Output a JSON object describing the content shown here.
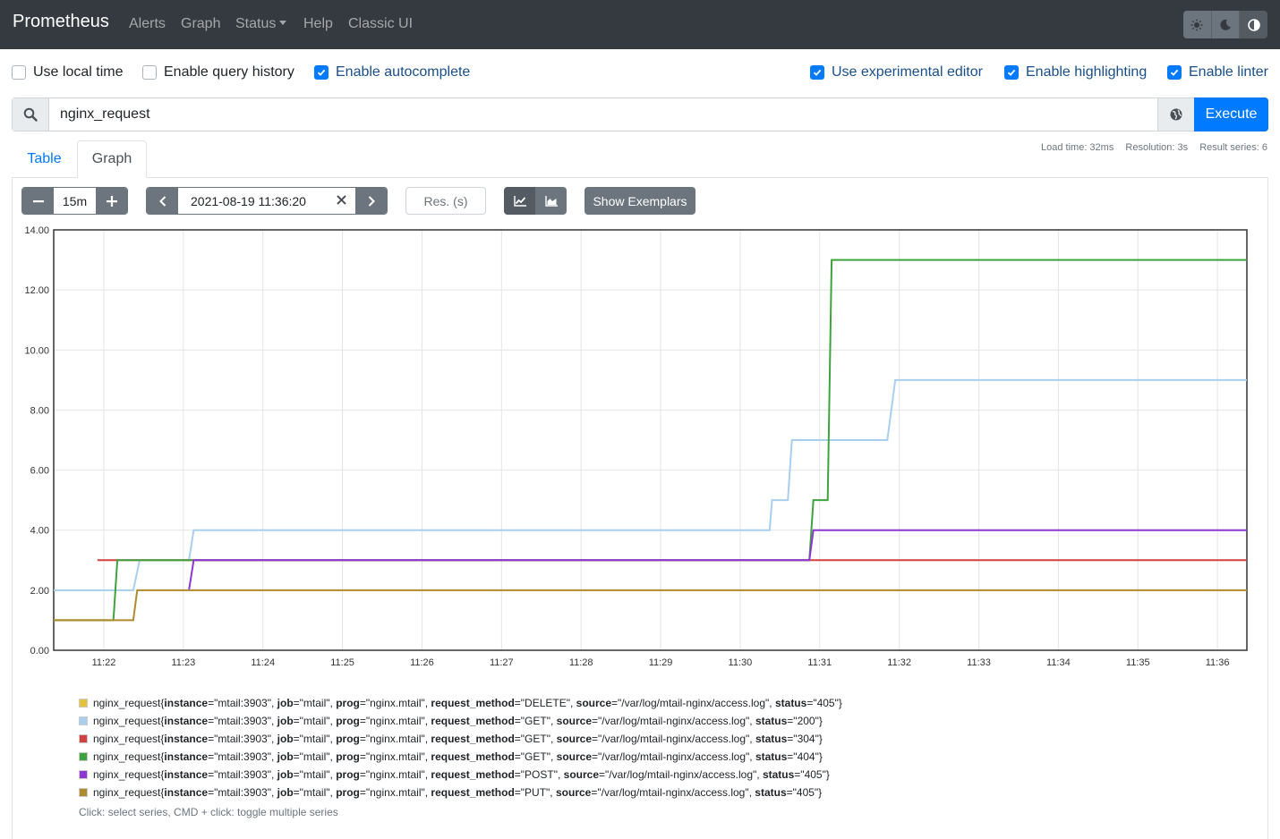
{
  "navbar": {
    "brand": "Prometheus",
    "links": [
      "Alerts",
      "Graph",
      "Status",
      "Help",
      "Classic UI"
    ],
    "theme_buttons": [
      "sun-icon",
      "moon-icon",
      "half-circle-icon"
    ]
  },
  "options_left": [
    {
      "label": "Use local time",
      "checked": false
    },
    {
      "label": "Enable query history",
      "checked": false
    },
    {
      "label": "Enable autocomplete",
      "checked": true
    }
  ],
  "options_right": [
    {
      "label": "Use experimental editor",
      "checked": true
    },
    {
      "label": "Enable highlighting",
      "checked": true
    },
    {
      "label": "Enable linter",
      "checked": true
    }
  ],
  "query": {
    "expression": "nginx_request",
    "execute_label": "Execute"
  },
  "tabs": {
    "table": "Table",
    "graph": "Graph"
  },
  "stats": {
    "load_time": "Load time: 32ms",
    "resolution": "Resolution: 3s",
    "result_series": "Result series: 6"
  },
  "controls": {
    "range": "15m",
    "end_time": "2021-08-19 11:36:20",
    "res_placeholder": "Res. (s)",
    "exemplars_label": "Show Exemplars"
  },
  "chart_data": {
    "type": "line",
    "x_ticks": [
      "11:22",
      "11:23",
      "11:24",
      "11:25",
      "11:26",
      "11:27",
      "11:28",
      "11:29",
      "11:30",
      "11:31",
      "11:32",
      "11:33",
      "11:34",
      "11:35",
      "11:36"
    ],
    "y_ticks": [
      "0.00",
      "2.00",
      "4.00",
      "6.00",
      "8.00",
      "10.00",
      "12.00",
      "14.00"
    ],
    "ylim": [
      0,
      14
    ],
    "xlim_min": [
      21.37,
      36.37
    ],
    "grid": true,
    "series": [
      {
        "color": "#e6c13e",
        "points": [
          [
            21.37,
            1
          ],
          [
            21.77,
            1
          ],
          [
            22.03,
            1
          ],
          [
            22.07,
            1
          ]
        ]
      },
      {
        "color": "#a9cfee",
        "points": [
          [
            21.37,
            2
          ],
          [
            22.37,
            2
          ],
          [
            22.45,
            3
          ],
          [
            23.07,
            3
          ],
          [
            23.13,
            4
          ],
          [
            30.37,
            4
          ],
          [
            30.4,
            5
          ],
          [
            30.6,
            5
          ],
          [
            30.65,
            7
          ],
          [
            31.85,
            7
          ],
          [
            31.95,
            9
          ],
          [
            36.37,
            9
          ]
        ]
      },
      {
        "color": "#d14141",
        "points": [
          [
            21.92,
            3
          ],
          [
            36.37,
            3
          ]
        ]
      },
      {
        "color": "#3ea33e",
        "points": [
          [
            21.37,
            1
          ],
          [
            22.12,
            1
          ],
          [
            22.17,
            3
          ],
          [
            23.07,
            3
          ],
          [
            23.1,
            3
          ],
          [
            30.87,
            3
          ],
          [
            30.92,
            5
          ],
          [
            31.1,
            5
          ],
          [
            31.15,
            13
          ],
          [
            36.37,
            13
          ]
        ]
      },
      {
        "color": "#8e35d4",
        "points": [
          [
            23.07,
            2
          ],
          [
            23.13,
            3
          ],
          [
            30.87,
            3
          ],
          [
            30.92,
            4
          ],
          [
            36.37,
            4
          ]
        ]
      },
      {
        "color": "#b08a2e",
        "points": [
          [
            21.37,
            1
          ],
          [
            22.37,
            1
          ],
          [
            22.42,
            2
          ],
          [
            36.37,
            2
          ]
        ]
      }
    ]
  },
  "legend": [
    {
      "color": "#e6c13e",
      "metric": "nginx_request",
      "labels": [
        [
          "instance",
          "mtail:3903"
        ],
        [
          "job",
          "mtail"
        ],
        [
          "prog",
          "nginx.mtail"
        ],
        [
          "request_method",
          "DELETE"
        ],
        [
          "source",
          "/var/log/mtail-nginx/access.log"
        ],
        [
          "status",
          "405"
        ]
      ]
    },
    {
      "color": "#a9cfee",
      "metric": "nginx_request",
      "labels": [
        [
          "instance",
          "mtail:3903"
        ],
        [
          "job",
          "mtail"
        ],
        [
          "prog",
          "nginx.mtail"
        ],
        [
          "request_method",
          "GET"
        ],
        [
          "source",
          "/var/log/mtail-nginx/access.log"
        ],
        [
          "status",
          "200"
        ]
      ]
    },
    {
      "color": "#d14141",
      "metric": "nginx_request",
      "labels": [
        [
          "instance",
          "mtail:3903"
        ],
        [
          "job",
          "mtail"
        ],
        [
          "prog",
          "nginx.mtail"
        ],
        [
          "request_method",
          "GET"
        ],
        [
          "source",
          "/var/log/mtail-nginx/access.log"
        ],
        [
          "status",
          "304"
        ]
      ]
    },
    {
      "color": "#3ea33e",
      "metric": "nginx_request",
      "labels": [
        [
          "instance",
          "mtail:3903"
        ],
        [
          "job",
          "mtail"
        ],
        [
          "prog",
          "nginx.mtail"
        ],
        [
          "request_method",
          "GET"
        ],
        [
          "source",
          "/var/log/mtail-nginx/access.log"
        ],
        [
          "status",
          "404"
        ]
      ]
    },
    {
      "color": "#8e35d4",
      "metric": "nginx_request",
      "labels": [
        [
          "instance",
          "mtail:3903"
        ],
        [
          "job",
          "mtail"
        ],
        [
          "prog",
          "nginx.mtail"
        ],
        [
          "request_method",
          "POST"
        ],
        [
          "source",
          "/var/log/mtail-nginx/access.log"
        ],
        [
          "status",
          "405"
        ]
      ]
    },
    {
      "color": "#b08a2e",
      "metric": "nginx_request",
      "labels": [
        [
          "instance",
          "mtail:3903"
        ],
        [
          "job",
          "mtail"
        ],
        [
          "prog",
          "nginx.mtail"
        ],
        [
          "request_method",
          "PUT"
        ],
        [
          "source",
          "/var/log/mtail-nginx/access.log"
        ],
        [
          "status",
          "405"
        ]
      ]
    }
  ],
  "hint": "Click: select series, CMD + click: toggle multiple series"
}
